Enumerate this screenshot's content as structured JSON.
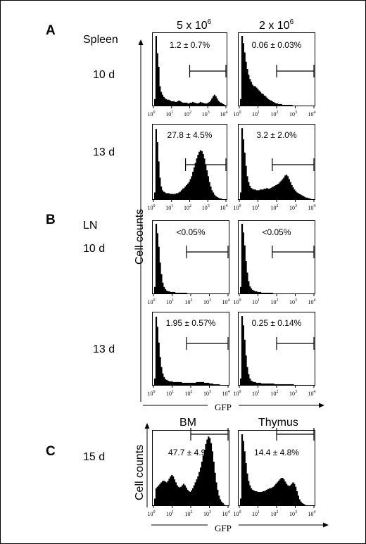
{
  "panels": {
    "A": "A",
    "B": "B",
    "C": "C"
  },
  "row_labels": {
    "spleen": "Spleen",
    "ln": "LN",
    "d10": "10 d",
    "d13": "13 d",
    "d15": "15 d"
  },
  "columns": {
    "col1_base": "5 x 10",
    "col1_exp": "6",
    "col2_base": "2 x 10",
    "col2_exp": "6",
    "bm": "BM",
    "thymus": "Thymus"
  },
  "axes": {
    "cell_counts": "Cell counts",
    "gfp": "GFP",
    "tick_base": "10",
    "tick_exponents": [
      "0",
      "1",
      "2",
      "3",
      "4"
    ]
  },
  "chart_data": [
    {
      "type": "histogram",
      "panel": "A",
      "tissue": "Spleen",
      "day": "10 d",
      "dose": "5 x 10^6",
      "gate_label": "1.2 ± 0.7%",
      "xscale": "log",
      "xlim": [
        1,
        10000
      ],
      "gate": [
        100,
        10000
      ],
      "counts": [
        10,
        98,
        74,
        55,
        28,
        20,
        16,
        13,
        11,
        10,
        9,
        9,
        8,
        7,
        7,
        7,
        6,
        6,
        7,
        8,
        7,
        6,
        5,
        5,
        5,
        5,
        4,
        4,
        5,
        5,
        6,
        5,
        5,
        4,
        4,
        5,
        6,
        5,
        5,
        4,
        4,
        4,
        5,
        6,
        8,
        11,
        14,
        16,
        14,
        11,
        8,
        6,
        5,
        4,
        3,
        2
      ]
    },
    {
      "type": "histogram",
      "panel": "A",
      "tissue": "Spleen",
      "day": "10 d",
      "dose": "2 x 10^6",
      "gate_label": "0.06 ± 0.03%",
      "xscale": "log",
      "xlim": [
        1,
        10000
      ],
      "gate": [
        100,
        10000
      ],
      "counts": [
        10,
        98,
        88,
        75,
        62,
        52,
        44,
        38,
        34,
        30,
        28,
        28,
        26,
        24,
        22,
        20,
        18,
        17,
        15,
        14,
        12,
        10,
        9,
        8,
        7,
        6,
        5,
        4,
        4,
        3,
        3,
        3,
        2,
        2,
        2,
        2,
        2,
        2,
        2,
        2,
        1,
        1,
        1,
        1,
        1,
        1,
        1,
        1,
        1,
        1,
        1,
        1,
        1,
        1,
        1,
        1
      ]
    },
    {
      "type": "histogram",
      "panel": "A",
      "tissue": "Spleen",
      "day": "13 d",
      "dose": "5 x 10^6",
      "gate_label": "27.8 ± 4.5%",
      "xscale": "log",
      "xlim": [
        1,
        10000
      ],
      "gate": [
        60,
        10000
      ],
      "counts": [
        10,
        96,
        78,
        52,
        30,
        18,
        13,
        11,
        10,
        9,
        9,
        9,
        8,
        8,
        8,
        8,
        8,
        9,
        9,
        10,
        11,
        13,
        15,
        16,
        18,
        20,
        22,
        24,
        28,
        32,
        38,
        44,
        50,
        56,
        61,
        65,
        67,
        66,
        62,
        56,
        48,
        40,
        32,
        24,
        18,
        13,
        10,
        7,
        5,
        4,
        3,
        2,
        2,
        1,
        1,
        1
      ]
    },
    {
      "type": "histogram",
      "panel": "A",
      "tissue": "Spleen",
      "day": "13 d",
      "dose": "2 x 10^6",
      "gate_label": "3.2 ± 2.0%",
      "xscale": "log",
      "xlim": [
        1,
        10000
      ],
      "gate": [
        60,
        10000
      ],
      "counts": [
        10,
        97,
        82,
        64,
        46,
        32,
        24,
        19,
        16,
        15,
        14,
        14,
        13,
        13,
        13,
        14,
        14,
        14,
        15,
        15,
        16,
        15,
        15,
        16,
        17,
        18,
        19,
        20,
        21,
        22,
        24,
        26,
        28,
        30,
        33,
        34,
        32,
        28,
        24,
        20,
        17,
        14,
        12,
        10,
        9,
        8,
        7,
        6,
        5,
        4,
        3,
        3,
        2,
        2,
        1,
        1
      ]
    },
    {
      "type": "histogram",
      "panel": "B",
      "tissue": "LN",
      "day": "10 d",
      "dose": "5 x 10^6",
      "gate_label": "<0.05%",
      "xscale": "log",
      "xlim": [
        1,
        10000
      ],
      "gate": [
        60,
        10000
      ],
      "counts": [
        10,
        98,
        85,
        66,
        44,
        28,
        16,
        10,
        7,
        5,
        4,
        4,
        3,
        3,
        3,
        3,
        2,
        2,
        2,
        2,
        2,
        2,
        2,
        2,
        2,
        1,
        1,
        1,
        1,
        1,
        1,
        1,
        1,
        1,
        1,
        1,
        1,
        1,
        1,
        1,
        1,
        1,
        1,
        1,
        1,
        1,
        1,
        1,
        1,
        1,
        1,
        1,
        1,
        1,
        1,
        1
      ]
    },
    {
      "type": "histogram",
      "panel": "B",
      "tissue": "LN",
      "day": "10 d",
      "dose": "2 x 10^6",
      "gate_label": "<0.05%",
      "xscale": "log",
      "xlim": [
        1,
        10000
      ],
      "gate": [
        60,
        10000
      ],
      "counts": [
        10,
        98,
        86,
        68,
        46,
        30,
        18,
        11,
        8,
        6,
        5,
        4,
        4,
        3,
        3,
        3,
        2,
        2,
        2,
        2,
        2,
        2,
        2,
        2,
        2,
        1,
        1,
        1,
        1,
        1,
        1,
        1,
        1,
        1,
        1,
        1,
        1,
        1,
        1,
        1,
        1,
        1,
        1,
        1,
        1,
        1,
        1,
        1,
        1,
        1,
        1,
        1,
        1,
        1,
        1,
        1
      ]
    },
    {
      "type": "histogram",
      "panel": "B",
      "tissue": "LN",
      "day": "13 d",
      "dose": "5 x 10^6",
      "gate_label": "1.95 ± 0.57%",
      "xscale": "log",
      "xlim": [
        1,
        10000
      ],
      "gate": [
        60,
        10000
      ],
      "counts": [
        10,
        96,
        82,
        60,
        40,
        26,
        17,
        12,
        9,
        8,
        7,
        6,
        6,
        6,
        5,
        5,
        5,
        5,
        5,
        5,
        5,
        4,
        4,
        4,
        4,
        4,
        4,
        4,
        4,
        4,
        4,
        4,
        5,
        5,
        5,
        5,
        5,
        5,
        4,
        4,
        4,
        4,
        3,
        3,
        3,
        2,
        2,
        2,
        2,
        2,
        1,
        1,
        1,
        1,
        1,
        1
      ]
    },
    {
      "type": "histogram",
      "panel": "B",
      "tissue": "LN",
      "day": "13 d",
      "dose": "2 x 10^6",
      "gate_label": "0.25 ± 0.14%",
      "xscale": "log",
      "xlim": [
        1,
        10000
      ],
      "gate": [
        100,
        10000
      ],
      "counts": [
        10,
        97,
        84,
        64,
        42,
        26,
        16,
        10,
        7,
        6,
        5,
        5,
        4,
        4,
        4,
        4,
        3,
        3,
        3,
        3,
        3,
        3,
        3,
        3,
        3,
        3,
        2,
        2,
        2,
        2,
        2,
        2,
        2,
        2,
        2,
        2,
        2,
        2,
        2,
        2,
        2,
        1,
        1,
        1,
        1,
        1,
        1,
        1,
        1,
        1,
        1,
        1,
        1,
        1,
        1,
        1
      ]
    },
    {
      "type": "histogram",
      "panel": "C",
      "tissue": "BM",
      "day": "15 d",
      "gate_label": "47.7 ± 4.9%",
      "xscale": "log",
      "xlim": [
        1,
        10000
      ],
      "gate": [
        100,
        10000
      ],
      "counts": [
        10,
        24,
        26,
        28,
        30,
        32,
        34,
        34,
        33,
        32,
        34,
        37,
        40,
        42,
        40,
        36,
        32,
        28,
        26,
        25,
        26,
        28,
        30,
        28,
        25,
        22,
        20,
        19,
        21,
        24,
        28,
        32,
        36,
        40,
        46,
        52,
        60,
        68,
        76,
        84,
        90,
        94,
        92,
        85,
        74,
        60,
        45,
        32,
        22,
        14,
        9,
        6,
        4,
        2,
        1,
        1
      ]
    },
    {
      "type": "histogram",
      "panel": "C",
      "tissue": "Thymus",
      "day": "15 d",
      "gate_label": "14.4 ± 4.8%",
      "xscale": "log",
      "xlim": [
        1,
        10000
      ],
      "gate": [
        100,
        10000
      ],
      "counts": [
        10,
        97,
        88,
        74,
        58,
        44,
        34,
        28,
        24,
        22,
        21,
        20,
        20,
        19,
        19,
        19,
        19,
        20,
        20,
        21,
        22,
        23,
        24,
        24,
        25,
        26,
        28,
        30,
        32,
        34,
        36,
        38,
        38,
        36,
        33,
        30,
        28,
        27,
        28,
        30,
        32,
        30,
        26,
        20,
        14,
        9,
        6,
        4,
        3,
        2,
        1,
        1,
        1,
        1,
        1,
        1
      ]
    }
  ]
}
